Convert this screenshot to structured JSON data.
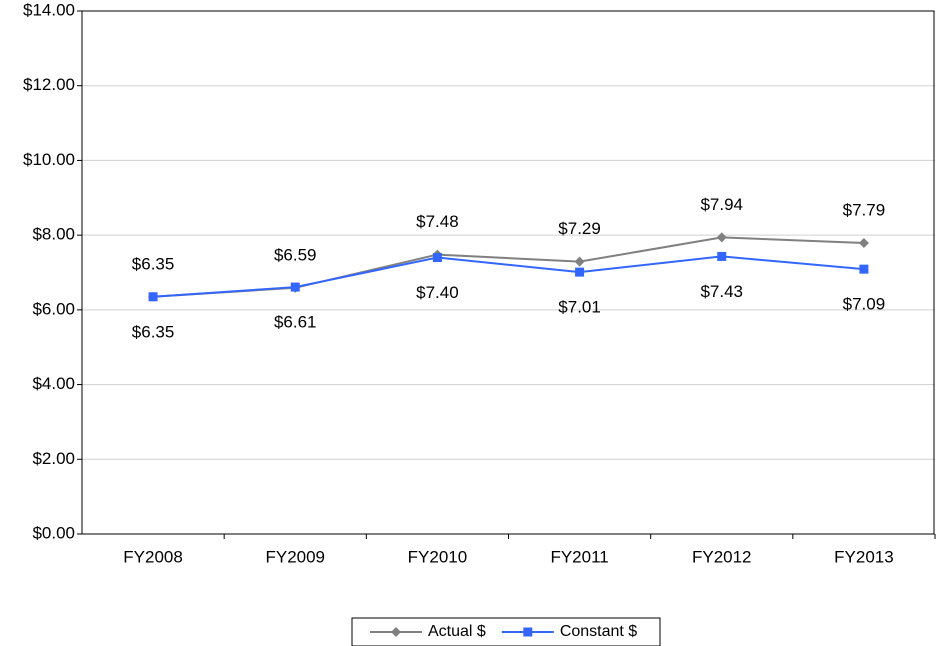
{
  "chart_data": {
    "type": "line",
    "categories": [
      "FY2008",
      "FY2009",
      "FY2010",
      "FY2011",
      "FY2012",
      "FY2013"
    ],
    "series": [
      {
        "name": "Actual $",
        "color": "#808080",
        "marker": "diamond",
        "values": [
          6.35,
          6.59,
          7.48,
          7.29,
          7.94,
          7.79
        ],
        "value_labels": [
          "$6.35",
          "$6.59",
          "$7.48",
          "$7.29",
          "$7.94",
          "$7.79"
        ]
      },
      {
        "name": "Constant $",
        "color": "#3366ff",
        "marker": "square",
        "values": [
          6.35,
          6.61,
          7.4,
          7.01,
          7.43,
          7.09
        ],
        "value_labels": [
          "$6.35",
          "$6.61",
          "$7.40",
          "$7.01",
          "$7.43",
          "$7.09"
        ]
      }
    ],
    "ylim": [
      0,
      14
    ],
    "yticks": [
      {
        "value": 0,
        "label": "$0.00"
      },
      {
        "value": 2,
        "label": "$2.00"
      },
      {
        "value": 4,
        "label": "$4.00"
      },
      {
        "value": 6,
        "label": "$6.00"
      },
      {
        "value": 8,
        "label": "$8.00"
      },
      {
        "value": 10,
        "label": "$10.00"
      },
      {
        "value": 12,
        "label": "$12.00"
      },
      {
        "value": 14,
        "label": "$14.00"
      }
    ],
    "grid": true,
    "legend": "bottom"
  }
}
